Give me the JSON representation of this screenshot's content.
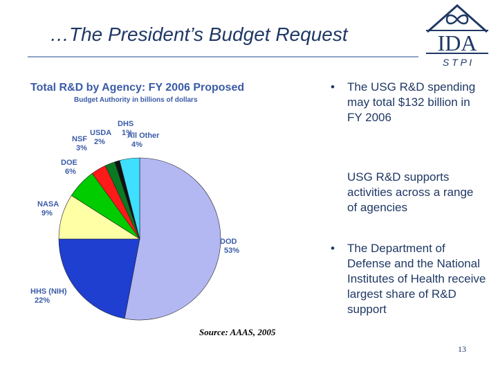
{
  "slide": {
    "title": "…The President’s Budget Request",
    "source": "Source: AAAS, 2005",
    "page_number": "13"
  },
  "logo": {
    "text": "IDA",
    "subtext": "S T P I",
    "icon": "infinity-emblem-icon",
    "color": "#1f3864"
  },
  "bullets": [
    {
      "marker": "•",
      "text": "The USG R&D spending may total $132 billion in FY 2006"
    },
    {
      "marker": "",
      "text": "USG R&D supports activities across a range of agencies"
    },
    {
      "marker": "•",
      "text": "The Department of Defense and the National Institutes of Health receive largest share of R&D support"
    }
  ],
  "chart_data": {
    "type": "pie",
    "title": "Total R&D by Agency: FY 2006 Proposed",
    "subtitle": "Budget Authority in billions of dollars",
    "slices": [
      {
        "name": "DOD",
        "value": 53,
        "label_pct": "53%",
        "color": "#b3b8f2"
      },
      {
        "name": "HHS (NIH)",
        "value": 22,
        "label_pct": "22%",
        "color": "#1f3fd1"
      },
      {
        "name": "NASA",
        "value": 9,
        "label_pct": "9%",
        "color": "#ffffa6"
      },
      {
        "name": "DOE",
        "value": 6,
        "label_pct": "6%",
        "color": "#00cc00"
      },
      {
        "name": "NSF",
        "value": 3,
        "label_pct": "3%",
        "color": "#ff1a1a"
      },
      {
        "name": "USDA",
        "value": 2,
        "label_pct": "2%",
        "color": "#0a7a22"
      },
      {
        "name": "DHS",
        "value": 1,
        "label_pct": "1%",
        "color": "#111111"
      },
      {
        "name": "All Other",
        "value": 4,
        "label_pct": "4%",
        "color": "#3ee0ff"
      }
    ],
    "start_angle_deg": 0,
    "direction": "clockwise",
    "label_color": "#3a5ba7"
  }
}
